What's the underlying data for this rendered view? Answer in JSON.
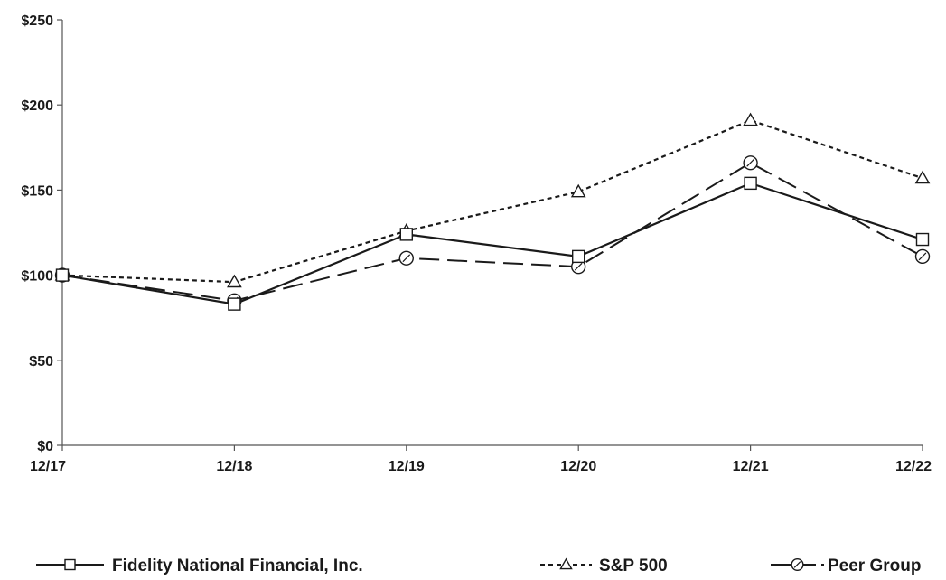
{
  "chart_data": {
    "type": "line",
    "x": [
      "12/17",
      "12/18",
      "12/19",
      "12/20",
      "12/21",
      "12/22"
    ],
    "ylim": [
      0,
      250
    ],
    "yticks": [
      0,
      50,
      100,
      150,
      200,
      250
    ],
    "ytick_labels": [
      "$0",
      "$50",
      "$100",
      "$150",
      "$200",
      "$250"
    ],
    "legend_position": "bottom",
    "grid": false,
    "series": [
      {
        "name": "Fidelity National Financial, Inc.",
        "marker": "square",
        "line": "solid",
        "values": [
          100,
          83,
          124,
          111,
          154,
          121
        ]
      },
      {
        "name": "S&P 500",
        "marker": "triangle",
        "line": "dotted",
        "values": [
          100,
          96,
          126,
          149,
          191,
          157
        ]
      },
      {
        "name": "Peer Group",
        "marker": "circle",
        "line": "dashed",
        "values": [
          100,
          85,
          110,
          105,
          166,
          111
        ]
      }
    ],
    "colors": {
      "line": "#1a1a1a",
      "axis": "#555555"
    }
  }
}
